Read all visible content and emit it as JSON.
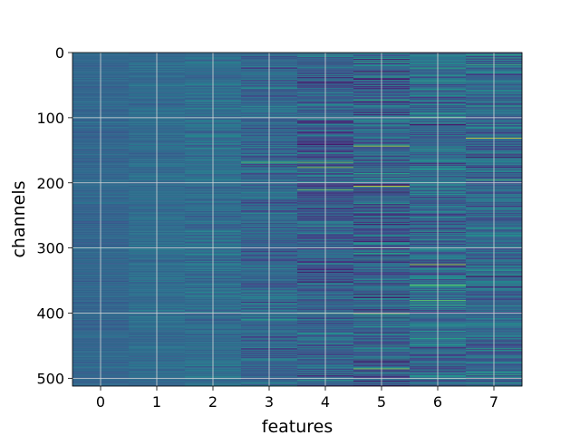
{
  "chart_data": {
    "type": "heatmap",
    "title": "",
    "xlabel": "features",
    "ylabel": "channels",
    "x_ticks": [
      "0",
      "1",
      "2",
      "3",
      "4",
      "5",
      "6",
      "7"
    ],
    "y_ticks": [
      "0",
      "100",
      "200",
      "300",
      "400",
      "500"
    ],
    "y_tick_values": [
      0,
      100,
      200,
      300,
      400,
      500
    ],
    "xlim": [
      -0.5,
      7.5
    ],
    "ylim": [
      512,
      0
    ],
    "n_features": 8,
    "n_channels": 512,
    "colormap": "viridis",
    "grid": true,
    "column_means": [
      0.33,
      0.35,
      0.36,
      0.33,
      0.3,
      0.31,
      0.35,
      0.34
    ],
    "column_spread": [
      0.05,
      0.06,
      0.09,
      0.14,
      0.18,
      0.22,
      0.2,
      0.18
    ],
    "highlights": [
      {
        "feature": 3,
        "channel": 168,
        "value": 0.75
      },
      {
        "feature": 3,
        "channel": 410,
        "value": 0.6
      },
      {
        "feature": 4,
        "channel": 168,
        "value": 0.8
      },
      {
        "feature": 4,
        "channel": 176,
        "value": 0.85
      },
      {
        "feature": 4,
        "channel": 210,
        "value": 0.8
      },
      {
        "feature": 4,
        "channel": 400,
        "value": 0.7
      },
      {
        "feature": 5,
        "channel": 143,
        "value": 0.9
      },
      {
        "feature": 5,
        "channel": 205,
        "value": 1.0
      },
      {
        "feature": 5,
        "channel": 400,
        "value": 0.9
      },
      {
        "feature": 5,
        "channel": 485,
        "value": 0.85
      },
      {
        "feature": 6,
        "channel": 325,
        "value": 0.9
      },
      {
        "feature": 6,
        "channel": 357,
        "value": 0.8
      },
      {
        "feature": 6,
        "channel": 380,
        "value": 0.75
      },
      {
        "feature": 7,
        "channel": 131,
        "value": 0.95
      },
      {
        "feature": 7,
        "channel": 195,
        "value": 0.7
      },
      {
        "feature": 7,
        "channel": 18,
        "value": 0.65
      }
    ],
    "lows": [
      {
        "feature": 4,
        "channel": 107,
        "value": 0.02
      },
      {
        "feature": 4,
        "channel": 337,
        "value": 0.03
      },
      {
        "feature": 5,
        "channel": 10,
        "value": 0.05
      },
      {
        "feature": 6,
        "channel": 110,
        "value": 0.04
      },
      {
        "feature": 7,
        "channel": 343,
        "value": 0.02
      },
      {
        "feature": 7,
        "channel": 160,
        "value": 0.05
      }
    ]
  }
}
